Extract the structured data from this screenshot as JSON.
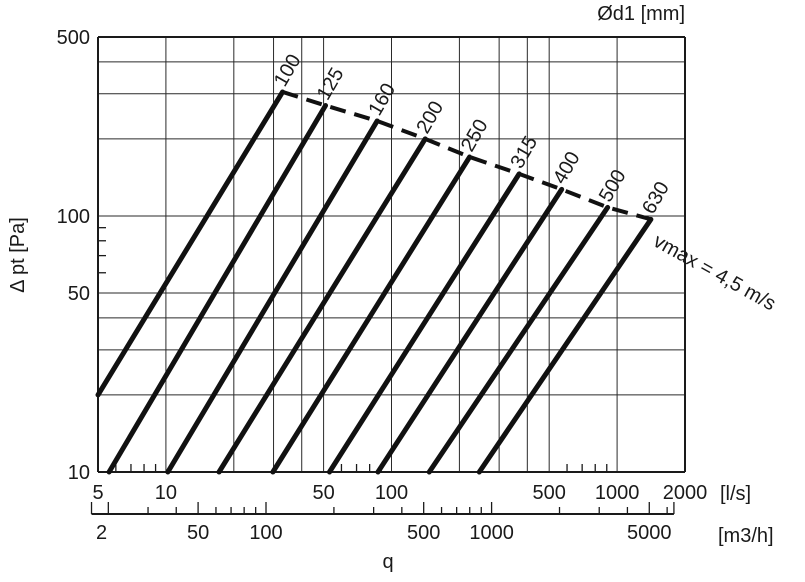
{
  "chart_data": {
    "type": "line",
    "title": "Ød1 [mm]",
    "ylabel": "Δ pt [Pa]",
    "xlabel": "q",
    "x_unit": "[l/s]",
    "x2_unit": "[m3/h]",
    "x_scale": "log",
    "y_scale": "log",
    "xlim": [
      5,
      2000
    ],
    "ylim": [
      10,
      500
    ],
    "x_ticks": [
      "5",
      "10",
      "50",
      "100",
      "500",
      "1000",
      "2000"
    ],
    "x2_ticks": [
      "2",
      "50",
      "100",
      "500",
      "1000",
      "5000"
    ],
    "y_ticks": [
      "10",
      "50",
      "100",
      "500"
    ],
    "grid": true,
    "series": [
      {
        "name": "100",
        "x": [
          5.0,
          32.9
        ],
        "y": [
          20,
          305
        ]
      },
      {
        "name": "125",
        "x": [
          5.6,
          51.0
        ],
        "y": [
          10,
          270
        ]
      },
      {
        "name": "160",
        "x": [
          10.2,
          86.4
        ],
        "y": [
          10,
          235
        ]
      },
      {
        "name": "200",
        "x": [
          17.2,
          141.0
        ],
        "y": [
          10,
          200
        ]
      },
      {
        "name": "250",
        "x": [
          29.8,
          222.0
        ],
        "y": [
          10,
          170
        ]
      },
      {
        "name": "315",
        "x": [
          53.1,
          368.0
        ],
        "y": [
          10,
          146
        ]
      },
      {
        "name": "400",
        "x": [
          87.1,
          568.0
        ],
        "y": [
          10,
          127
        ]
      },
      {
        "name": "500",
        "x": [
          147.0,
          908.0
        ],
        "y": [
          10,
          108
        ]
      },
      {
        "name": "630",
        "x": [
          245.0,
          1412.0
        ],
        "y": [
          10,
          97
        ]
      }
    ],
    "vmax_line": {
      "label": "vmax = 4,5 m/s",
      "x": [
        32.9,
        1412.0
      ],
      "y": [
        305,
        97
      ]
    }
  }
}
